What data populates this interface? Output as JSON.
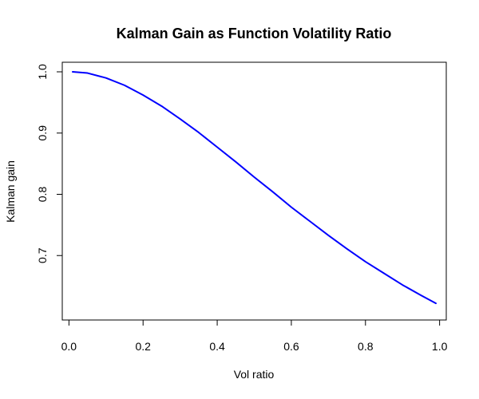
{
  "chart_data": {
    "type": "line",
    "title": "Kalman Gain as Function Volatility Ratio",
    "xlabel": "Vol ratio",
    "ylabel": "Kalman gain",
    "xlim": [
      0.01,
      0.99
    ],
    "ylim": [
      0.6104,
      1.0
    ],
    "x_ticks": [
      0.0,
      0.2,
      0.4,
      0.6,
      0.8,
      1.0
    ],
    "x_tick_labels": [
      "0.0",
      "0.2",
      "0.4",
      "0.6",
      "0.8",
      "1.0"
    ],
    "y_ticks": [
      0.7,
      0.8,
      0.9,
      1.0
    ],
    "y_tick_labels": [
      "0.7",
      "0.8",
      "0.9",
      "1.0"
    ],
    "grid": false,
    "legend": "none",
    "series": [
      {
        "color": "#0000ff",
        "x": [
          0.01,
          0.05,
          0.1,
          0.15,
          0.2,
          0.25,
          0.3,
          0.35,
          0.4,
          0.45,
          0.5,
          0.55,
          0.6,
          0.65,
          0.7,
          0.75,
          0.8,
          0.85,
          0.9,
          0.95,
          0.99
        ],
        "y": [
          1.0,
          0.998,
          0.99,
          0.978,
          0.962,
          0.944,
          0.923,
          0.901,
          0.877,
          0.853,
          0.828,
          0.804,
          0.779,
          0.756,
          0.733,
          0.711,
          0.69,
          0.671,
          0.652,
          0.635,
          0.622
        ]
      }
    ]
  }
}
